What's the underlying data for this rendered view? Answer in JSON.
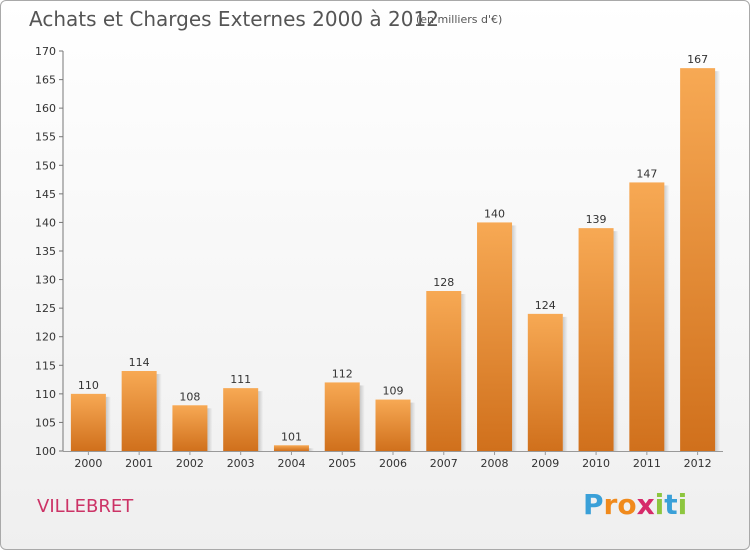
{
  "header": {
    "title": "Achats et Charges Externes 2000 à 2012",
    "subtitle": "(en milliers d'€)"
  },
  "footer": {
    "place": "VILLEBRET",
    "logo_letters": [
      "P",
      "r",
      "o",
      "x",
      "i",
      "t",
      "i"
    ]
  },
  "colors": {
    "bar_top": "#f7a954",
    "bar_bottom": "#d0701c",
    "title": "#555555",
    "place": "#cc3366",
    "logo": [
      "#3aa0d8",
      "#f08a1c",
      "#f08a1c",
      "#d62a6a",
      "#8dc63f",
      "#3aa0d8",
      "#8dc63f"
    ]
  },
  "chart_data": {
    "type": "bar",
    "title": "Achats et Charges Externes 2000 à 2012",
    "subtitle": "(en milliers d'€)",
    "categories": [
      "2000",
      "2001",
      "2002",
      "2003",
      "2004",
      "2005",
      "2006",
      "2007",
      "2008",
      "2009",
      "2010",
      "2011",
      "2012"
    ],
    "values": [
      110,
      114,
      108,
      111,
      101,
      112,
      109,
      128,
      140,
      124,
      139,
      147,
      167
    ],
    "ylim": [
      100,
      170
    ],
    "yticks": [
      100,
      105,
      110,
      115,
      120,
      125,
      130,
      135,
      140,
      145,
      150,
      155,
      160,
      165,
      170
    ],
    "xlabel": "",
    "ylabel": "",
    "grid": false
  }
}
